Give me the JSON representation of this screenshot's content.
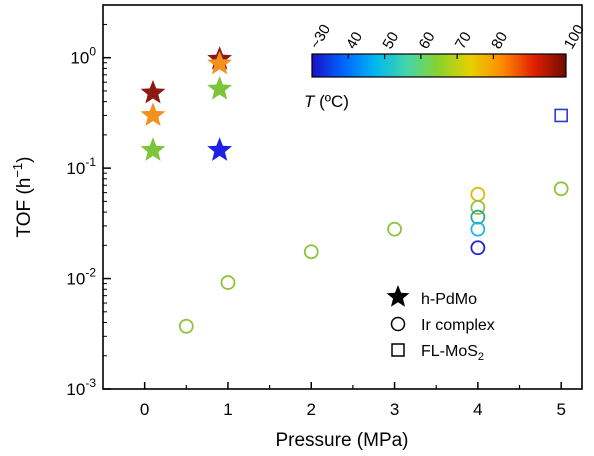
{
  "chart_data": {
    "type": "scatter",
    "title": "",
    "xlabel": "Pressure (MPa)",
    "ylabel": "TOF (h",
    "ylabel_sup": "−1",
    "ylabel_tail": ")",
    "x_ticks": [
      "0",
      "1",
      "2",
      "3",
      "4",
      "5"
    ],
    "xlim": [
      -0.5,
      5.25
    ],
    "y_scale": "log",
    "ylim": [
      0.001,
      3
    ],
    "y_ticks": [
      {
        "base": "10",
        "exp": "-3",
        "value": 0.001
      },
      {
        "base": "10",
        "exp": "-2",
        "value": 0.01
      },
      {
        "base": "10",
        "exp": "-1",
        "value": 0.1
      },
      {
        "base": "10",
        "exp": "0",
        "value": 1
      }
    ],
    "colorbar": {
      "label_prefix": "T",
      "label_suffix": " (ºC)",
      "ticks": [
        "~30",
        "40",
        "50",
        "60",
        "70",
        "80",
        "100"
      ],
      "min": 30,
      "max": 100,
      "tick_values": [
        30,
        40,
        50,
        60,
        70,
        80,
        100
      ],
      "colors": [
        "#1a10c8",
        "#0066ff",
        "#00b8f0",
        "#44d6a8",
        "#8cd22c",
        "#e8d000",
        "#ff8a00",
        "#e02000",
        "#6e0c00"
      ]
    },
    "series": [
      {
        "name": "h-PdMo",
        "marker": "star",
        "points": [
          {
            "x": 0.1,
            "y": 0.48,
            "color": "#8b1a12"
          },
          {
            "x": 0.1,
            "y": 0.3,
            "color": "#f4901e"
          },
          {
            "x": 0.1,
            "y": 0.145,
            "color": "#7cc43a"
          },
          {
            "x": 0.9,
            "y": 0.97,
            "color": "#8b1a12"
          },
          {
            "x": 0.9,
            "y": 0.88,
            "color": "#f4901e"
          },
          {
            "x": 0.9,
            "y": 0.52,
            "color": "#7cc43a"
          },
          {
            "x": 0.9,
            "y": 0.145,
            "color": "#1d20e6"
          }
        ]
      },
      {
        "name": "Ir complex",
        "marker": "circle",
        "points": [
          {
            "x": 0.5,
            "y": 0.0037,
            "color": "#8cc43a"
          },
          {
            "x": 1.0,
            "y": 0.0092,
            "color": "#8cc43a"
          },
          {
            "x": 2.0,
            "y": 0.0175,
            "color": "#8cc43a"
          },
          {
            "x": 3.0,
            "y": 0.028,
            "color": "#8cc43a"
          },
          {
            "x": 4.0,
            "y": 0.058,
            "color": "#e0b800"
          },
          {
            "x": 4.0,
            "y": 0.044,
            "color": "#8cc43a"
          },
          {
            "x": 4.0,
            "y": 0.036,
            "color": "#2aa890"
          },
          {
            "x": 4.0,
            "y": 0.028,
            "color": "#22b4e8"
          },
          {
            "x": 4.0,
            "y": 0.019,
            "color": "#2222d8"
          },
          {
            "x": 5.0,
            "y": 0.065,
            "color": "#8cc43a"
          }
        ]
      },
      {
        "name": "FL-MoS",
        "name_sub": "2",
        "marker": "square",
        "points": [
          {
            "x": 5.0,
            "y": 0.3,
            "color": "#2a3ad8"
          }
        ]
      }
    ],
    "legend": [
      {
        "marker": "star",
        "label": "h-PdMo"
      },
      {
        "marker": "circle",
        "label": "Ir complex"
      },
      {
        "marker": "square",
        "label": "FL-MoS",
        "sub": "2"
      }
    ],
    "legend_placement": "bottom-right",
    "grid": false
  }
}
